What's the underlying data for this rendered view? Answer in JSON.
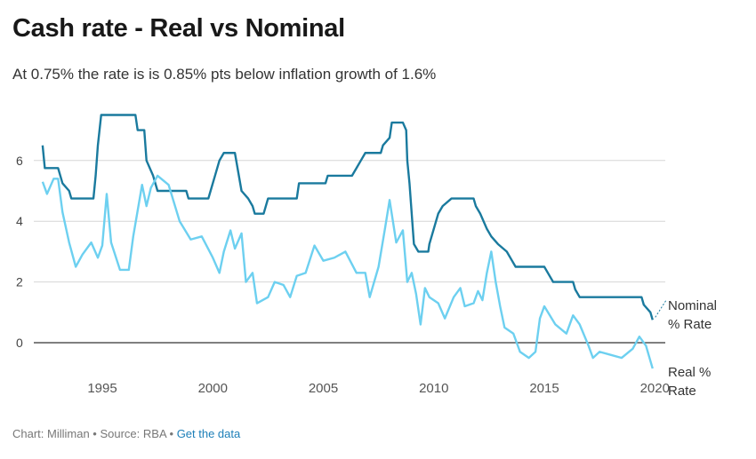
{
  "header": {
    "title": "Cash rate - Real vs Nominal",
    "subtitle": "At 0.75% the rate is is 0.85% pts below inflation growth of 1.6%"
  },
  "footer": {
    "chart": "Chart: Milliman",
    "sep1": " • ",
    "source": "Source: RBA",
    "sep2": " • ",
    "link": "Get the data"
  },
  "chart_data": {
    "type": "line",
    "title": "Cash rate - Real vs Nominal",
    "xlabel": "",
    "ylabel": "",
    "xlim": [
      1992.3,
      2020
    ],
    "ylim": [
      -1,
      7.7
    ],
    "grid": true,
    "xticks": [
      1995,
      2000,
      2005,
      2010,
      2015,
      2020
    ],
    "yticks": [
      0,
      2,
      4,
      6
    ],
    "series": [
      {
        "name": "Nominal % Rate",
        "color": "#1a7a9e",
        "points": [
          [
            1992.3,
            6.5
          ],
          [
            1992.4,
            5.75
          ],
          [
            1993.0,
            5.75
          ],
          [
            1993.2,
            5.25
          ],
          [
            1993.5,
            5.0
          ],
          [
            1993.6,
            4.75
          ],
          [
            1994.6,
            4.75
          ],
          [
            1994.7,
            5.5
          ],
          [
            1994.8,
            6.5
          ],
          [
            1994.95,
            7.5
          ],
          [
            1996.5,
            7.5
          ],
          [
            1996.6,
            7.0
          ],
          [
            1996.9,
            7.0
          ],
          [
            1997.0,
            6.0
          ],
          [
            1997.3,
            5.5
          ],
          [
            1997.5,
            5.0
          ],
          [
            1998.8,
            5.0
          ],
          [
            1998.9,
            4.75
          ],
          [
            1999.8,
            4.75
          ],
          [
            1999.9,
            5.0
          ],
          [
            2000.1,
            5.5
          ],
          [
            2000.3,
            6.0
          ],
          [
            2000.5,
            6.25
          ],
          [
            2001.0,
            6.25
          ],
          [
            2001.3,
            5.0
          ],
          [
            2001.6,
            4.75
          ],
          [
            2001.8,
            4.5
          ],
          [
            2001.9,
            4.25
          ],
          [
            2002.3,
            4.25
          ],
          [
            2002.5,
            4.75
          ],
          [
            2003.8,
            4.75
          ],
          [
            2003.9,
            5.25
          ],
          [
            2005.1,
            5.25
          ],
          [
            2005.2,
            5.5
          ],
          [
            2006.3,
            5.5
          ],
          [
            2006.5,
            5.75
          ],
          [
            2006.7,
            6.0
          ],
          [
            2006.9,
            6.25
          ],
          [
            2007.6,
            6.25
          ],
          [
            2007.7,
            6.5
          ],
          [
            2008.0,
            6.75
          ],
          [
            2008.1,
            7.25
          ],
          [
            2008.6,
            7.25
          ],
          [
            2008.75,
            7.0
          ],
          [
            2008.8,
            6.0
          ],
          [
            2008.9,
            5.25
          ],
          [
            2009.0,
            4.25
          ],
          [
            2009.1,
            3.25
          ],
          [
            2009.3,
            3.0
          ],
          [
            2009.75,
            3.0
          ],
          [
            2009.8,
            3.25
          ],
          [
            2009.9,
            3.5
          ],
          [
            2010.0,
            3.75
          ],
          [
            2010.2,
            4.25
          ],
          [
            2010.4,
            4.5
          ],
          [
            2010.8,
            4.75
          ],
          [
            2011.8,
            4.75
          ],
          [
            2011.9,
            4.5
          ],
          [
            2012.1,
            4.25
          ],
          [
            2012.4,
            3.75
          ],
          [
            2012.6,
            3.5
          ],
          [
            2012.9,
            3.25
          ],
          [
            2013.3,
            3.0
          ],
          [
            2013.5,
            2.75
          ],
          [
            2013.7,
            2.5
          ],
          [
            2015.0,
            2.5
          ],
          [
            2015.2,
            2.25
          ],
          [
            2015.4,
            2.0
          ],
          [
            2016.3,
            2.0
          ],
          [
            2016.4,
            1.75
          ],
          [
            2016.6,
            1.5
          ],
          [
            2019.4,
            1.5
          ],
          [
            2019.5,
            1.25
          ],
          [
            2019.8,
            1.0
          ],
          [
            2019.9,
            0.75
          ]
        ]
      },
      {
        "name": "Real % Rate",
        "color": "#6dd0f0",
        "points": [
          [
            1992.3,
            5.3
          ],
          [
            1992.5,
            4.9
          ],
          [
            1992.8,
            5.4
          ],
          [
            1993.0,
            5.4
          ],
          [
            1993.2,
            4.3
          ],
          [
            1993.5,
            3.3
          ],
          [
            1993.8,
            2.5
          ],
          [
            1994.1,
            2.9
          ],
          [
            1994.5,
            3.3
          ],
          [
            1994.8,
            2.8
          ],
          [
            1995.0,
            3.2
          ],
          [
            1995.2,
            4.9
          ],
          [
            1995.4,
            3.3
          ],
          [
            1995.8,
            2.4
          ],
          [
            1996.2,
            2.4
          ],
          [
            1996.4,
            3.5
          ],
          [
            1996.8,
            5.2
          ],
          [
            1997.0,
            4.5
          ],
          [
            1997.2,
            5.1
          ],
          [
            1997.5,
            5.5
          ],
          [
            1998.0,
            5.2
          ],
          [
            1998.5,
            4.0
          ],
          [
            1999.0,
            3.4
          ],
          [
            1999.5,
            3.5
          ],
          [
            2000.0,
            2.8
          ],
          [
            2000.3,
            2.3
          ],
          [
            2000.5,
            3.0
          ],
          [
            2000.8,
            3.7
          ],
          [
            2001.0,
            3.1
          ],
          [
            2001.3,
            3.6
          ],
          [
            2001.5,
            2.0
          ],
          [
            2001.8,
            2.3
          ],
          [
            2002.0,
            1.3
          ],
          [
            2002.5,
            1.5
          ],
          [
            2002.8,
            2.0
          ],
          [
            2003.2,
            1.9
          ],
          [
            2003.5,
            1.5
          ],
          [
            2003.8,
            2.2
          ],
          [
            2004.2,
            2.3
          ],
          [
            2004.6,
            3.2
          ],
          [
            2005.0,
            2.7
          ],
          [
            2005.5,
            2.8
          ],
          [
            2006.0,
            3.0
          ],
          [
            2006.5,
            2.3
          ],
          [
            2006.9,
            2.3
          ],
          [
            2007.1,
            1.5
          ],
          [
            2007.5,
            2.5
          ],
          [
            2007.8,
            3.8
          ],
          [
            2008.0,
            4.7
          ],
          [
            2008.3,
            3.3
          ],
          [
            2008.6,
            3.7
          ],
          [
            2008.8,
            2.0
          ],
          [
            2009.0,
            2.3
          ],
          [
            2009.2,
            1.6
          ],
          [
            2009.4,
            0.6
          ],
          [
            2009.6,
            1.8
          ],
          [
            2009.8,
            1.5
          ],
          [
            2010.2,
            1.3
          ],
          [
            2010.5,
            0.8
          ],
          [
            2010.9,
            1.5
          ],
          [
            2011.2,
            1.8
          ],
          [
            2011.4,
            1.2
          ],
          [
            2011.8,
            1.3
          ],
          [
            2012.0,
            1.7
          ],
          [
            2012.2,
            1.4
          ],
          [
            2012.4,
            2.3
          ],
          [
            2012.6,
            3.0
          ],
          [
            2012.8,
            2.0
          ],
          [
            2013.0,
            1.2
          ],
          [
            2013.2,
            0.5
          ],
          [
            2013.6,
            0.3
          ],
          [
            2013.9,
            -0.3
          ],
          [
            2014.3,
            -0.5
          ],
          [
            2014.6,
            -0.3
          ],
          [
            2014.8,
            0.8
          ],
          [
            2015.0,
            1.2
          ],
          [
            2015.5,
            0.6
          ],
          [
            2016.0,
            0.3
          ],
          [
            2016.3,
            0.9
          ],
          [
            2016.6,
            0.6
          ],
          [
            2017.0,
            -0.1
          ],
          [
            2017.2,
            -0.5
          ],
          [
            2017.5,
            -0.3
          ],
          [
            2018.0,
            -0.4
          ],
          [
            2018.5,
            -0.5
          ],
          [
            2019.0,
            -0.2
          ],
          [
            2019.3,
            0.2
          ],
          [
            2019.6,
            -0.1
          ],
          [
            2019.9,
            -0.85
          ]
        ]
      }
    ],
    "labels": {
      "nominal": [
        "Nominal",
        "% Rate"
      ],
      "real": [
        "Real %",
        "Rate"
      ]
    }
  }
}
